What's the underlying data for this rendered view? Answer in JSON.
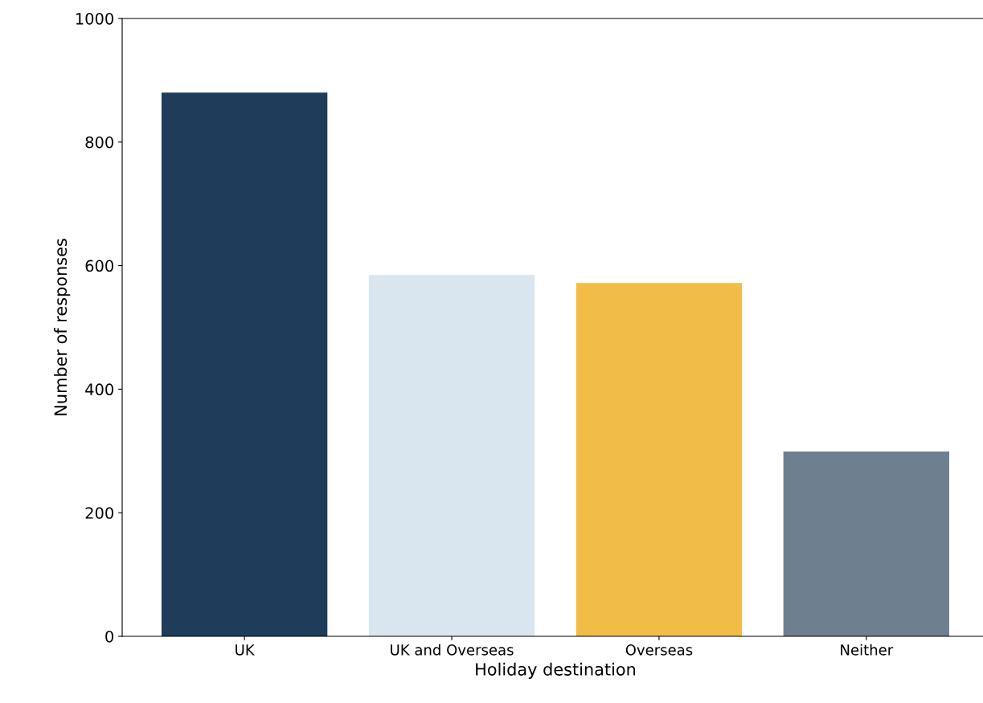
{
  "chart_data": {
    "type": "bar",
    "xlabel": "Holiday destination",
    "ylabel": "Number of responses",
    "categories": [
      "UK",
      "UK and Overseas",
      "Overseas",
      "Neither"
    ],
    "values": [
      880,
      585,
      572,
      299
    ],
    "colors": [
      "#1f3d5a",
      "#d9e6ef",
      "#f1bd47",
      "#6e7f8f"
    ],
    "ylim": [
      0,
      1000
    ],
    "yticks": [
      0,
      200,
      400,
      600,
      800,
      1000
    ],
    "grid": false
  }
}
